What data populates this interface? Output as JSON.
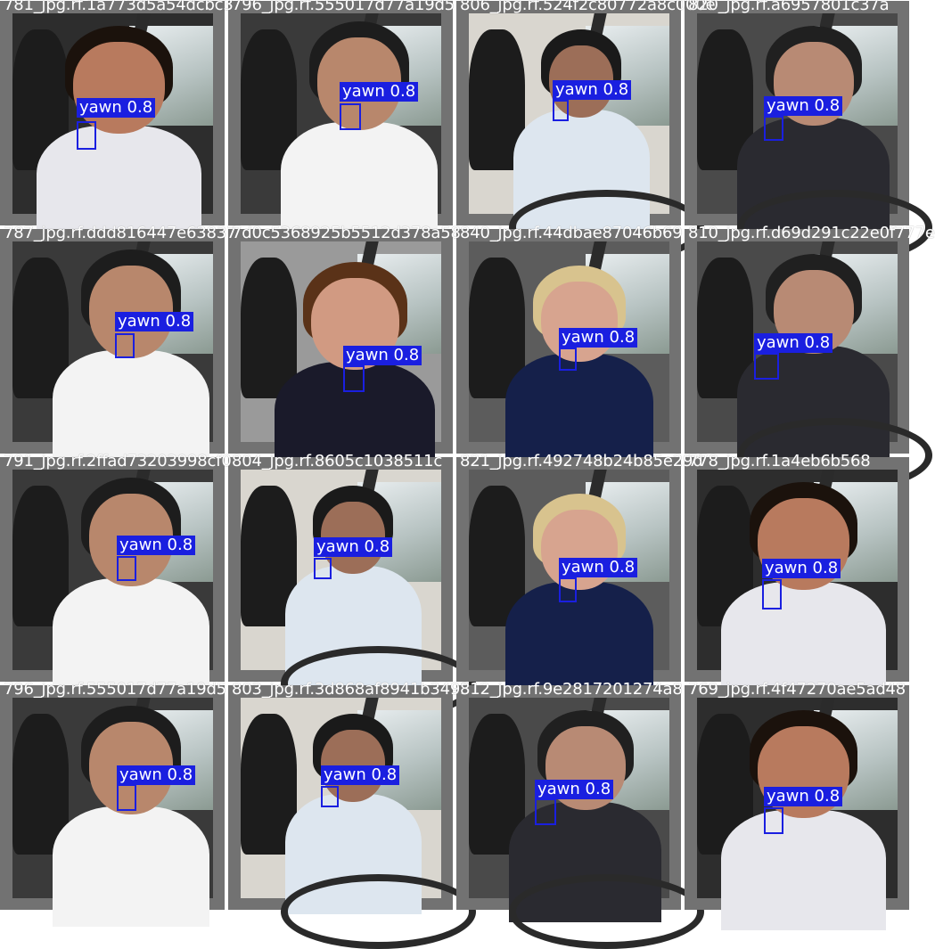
{
  "tiles": [
    {
      "caption": "781_jpg.rf.1a773d5a54dcbc3",
      "label": "yawn 0.8",
      "scene": "woman-dark"
    },
    {
      "caption": "796_jpg.rf.555017d77a19d5",
      "label": "yawn 0.8",
      "scene": "man-glasses"
    },
    {
      "caption": "806_jpg.rf.524f2c80772a8c000e",
      "label": "yawn 0.8",
      "scene": "man-light"
    },
    {
      "caption": "820_jpg.rf.a6957801c37a",
      "label": "yawn 0.8",
      "scene": "man-stripes"
    },
    {
      "caption": "787_jpg.rf.ddd816447e63837",
      "label": "yawn 0.8",
      "scene": "man-glasses"
    },
    {
      "caption": "7d0c5368925b5512d378a58",
      "label": "yawn 0.8",
      "scene": "woman-older"
    },
    {
      "caption": "840_jpg.rf.44dbae87046b69",
      "label": "yawn 0.8",
      "scene": "woman-blonde"
    },
    {
      "caption": "810_jpg.rf.d69d291c22e0f777e",
      "label": "yawn 0.8",
      "scene": "man-stripes"
    },
    {
      "caption": "791_jpg.rf.2ffad73203998cf0",
      "label": "yawn 0.8",
      "scene": "man-glasses"
    },
    {
      "caption": "804_jpg.rf.8605c1038511c",
      "label": "yawn 0.8",
      "scene": "man-light"
    },
    {
      "caption": "821_jpg.rf.492748b24b85e29d",
      "label": "yawn 0.8",
      "scene": "woman-blonde"
    },
    {
      "caption": "778_jpg.rf.1a4eb6b568",
      "label": "yawn 0.8",
      "scene": "woman-dark"
    },
    {
      "caption": "796_jpg.rf.555017d77a19d5",
      "label": "yawn 0.8",
      "scene": "man-glasses"
    },
    {
      "caption": "803_jpg.rf.3d868af8941b3493",
      "label": "yawn 0.8",
      "scene": "man-light"
    },
    {
      "caption": "812_jpg.rf.9e2817201274a8",
      "label": "yawn 0.8",
      "scene": "man-stripes"
    },
    {
      "caption": "769_jpg.rf.4f47270ae5ad48",
      "label": "yawn 0.8",
      "scene": "woman-dark"
    }
  ],
  "colors": {
    "tile_border": "#727272",
    "box": "#1a1fe0",
    "label_text": "#ffffff",
    "caption_text": "#ffffff"
  }
}
